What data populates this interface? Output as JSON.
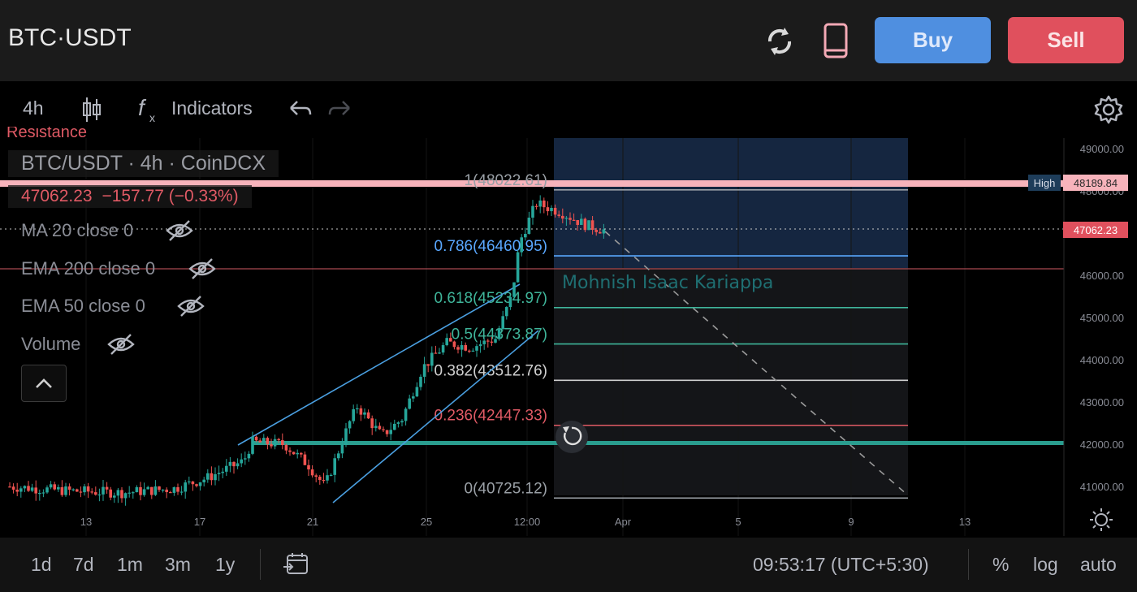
{
  "header": {
    "pair": "BTC·USDT",
    "buy_label": "Buy",
    "sell_label": "Sell"
  },
  "toolbar": {
    "interval": "4h",
    "indicators_label": "Indicators"
  },
  "chart": {
    "overlay_title": "BTC/USDT · 4h · CoinDCX",
    "resistance_label": "Resistance",
    "last_price": "47062.23",
    "change": "−157.77 (−0.33%)",
    "watermark": "Mohnish Isaac Kariappa",
    "indicators": [
      {
        "label": "MA 20 close 0"
      },
      {
        "label": "EMA 200 close 0"
      },
      {
        "label": "EMA 50 close 0"
      },
      {
        "label": "Volume"
      }
    ],
    "price_axis": [
      "49000.00",
      "48000.00",
      "47000.00",
      "46000.00",
      "45000.00",
      "44000.00",
      "43000.00",
      "42000.00",
      "41000.00"
    ],
    "high_tag_label": "High",
    "high_tag_value": "48189.84",
    "last_tag_value": "47062.23",
    "time_axis": [
      "13",
      "17",
      "21",
      "25",
      "12:00",
      "Apr",
      "5",
      "9",
      "13"
    ],
    "fib_levels": [
      {
        "ratio": "1",
        "price": "48022.61",
        "text": "1(48022.61)",
        "color": "#9aa0a6"
      },
      {
        "ratio": "0.786",
        "price": "46460.95",
        "text": "0.786(46460.95)",
        "color": "#5aa8ff"
      },
      {
        "ratio": "0.618",
        "price": "45234.97",
        "text": "0.618(45234.97)",
        "color": "#3fb59a"
      },
      {
        "ratio": "0.5",
        "price": "44373.87",
        "text": "0.5(44373.87)",
        "color": "#3fb59a"
      },
      {
        "ratio": "0.382",
        "price": "43512.76",
        "text": "0.382(43512.76)",
        "color": "#d0d0d0"
      },
      {
        "ratio": "0.236",
        "price": "42447.33",
        "text": "0.236(42447.33)",
        "color": "#e05a65"
      },
      {
        "ratio": "0",
        "price": "40725.12",
        "text": "0(40725.12)",
        "color": "#9aa0a6"
      }
    ]
  },
  "footer": {
    "ranges": [
      "1d",
      "7d",
      "1m",
      "3m",
      "1y"
    ],
    "clock": "09:53:17 (UTC+5:30)",
    "percent_label": "%",
    "log_label": "log",
    "auto_label": "auto"
  },
  "colors": {
    "buy": "#4f8fe0",
    "sell": "#e0505d",
    "up_candle": "#26a69a",
    "down_candle": "#ef5350",
    "support_line": "#26a69a",
    "resistance_line": "#f7b3bb"
  },
  "icons": [
    "refresh-icon",
    "mobile-icon",
    "candles-icon",
    "fx-icon",
    "undo-icon",
    "redo-icon",
    "gear-icon",
    "eye-off-icon",
    "chevron-up-icon",
    "calendar-icon",
    "sun-icon",
    "reset-icon"
  ]
}
